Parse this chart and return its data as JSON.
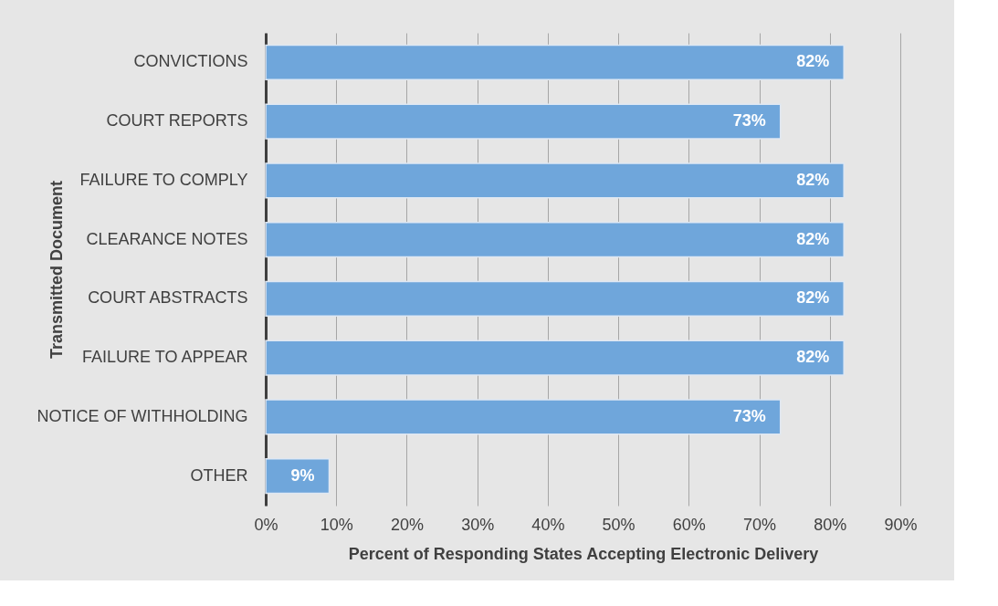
{
  "chart_data": {
    "type": "bar",
    "orientation": "horizontal",
    "xlabel": "Percent of Responding States Accepting Electronic Delivery",
    "ylabel": "Transmitted Document",
    "categories": [
      "CONVICTIONS",
      "COURT REPORTS",
      "FAILURE TO COMPLY",
      "CLEARANCE NOTES",
      "COURT ABSTRACTS",
      "FAILURE TO APPEAR",
      "NOTICE OF WITHHOLDING",
      "OTHER"
    ],
    "values": [
      82,
      73,
      82,
      82,
      82,
      82,
      73,
      9
    ],
    "value_labels": [
      "82%",
      "73%",
      "82%",
      "82%",
      "82%",
      "82%",
      "73%",
      "9%"
    ],
    "color": "#6fa6db",
    "xlim": [
      0,
      90
    ],
    "xticks": [
      {
        "value": 0,
        "label": "0%"
      },
      {
        "value": 10,
        "label": "10%"
      },
      {
        "value": 20,
        "label": "20%"
      },
      {
        "value": 30,
        "label": "30%"
      },
      {
        "value": 40,
        "label": "40%"
      },
      {
        "value": 50,
        "label": "50%"
      },
      {
        "value": 60,
        "label": "60%"
      },
      {
        "value": 70,
        "label": "70%"
      },
      {
        "value": 80,
        "label": "80%"
      },
      {
        "value": 90,
        "label": "90%"
      }
    ],
    "grid": "x"
  }
}
